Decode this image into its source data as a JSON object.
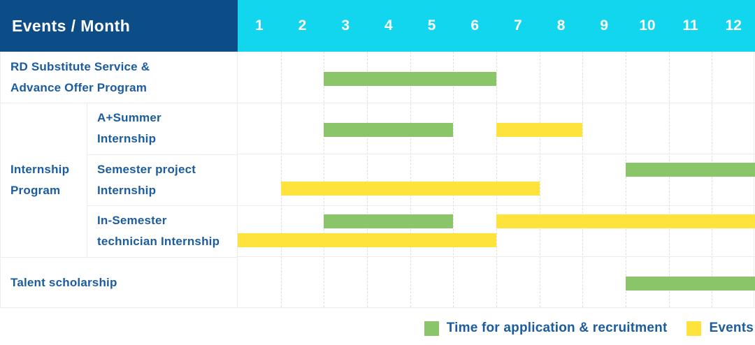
{
  "title": "Events / Month",
  "months": [
    "1",
    "2",
    "3",
    "4",
    "5",
    "6",
    "7",
    "8",
    "9",
    "10",
    "11",
    "12"
  ],
  "group_label": "Internship\nProgram",
  "colors": {
    "header_bg": "#0d4d87",
    "months_bg": "#12d6ee",
    "green": "#8bc56a",
    "yellow": "#ffe33d",
    "label_text": "#1b5c9e",
    "header_text": "#ffffff",
    "grid_solid": "#ececec",
    "grid_dashed": "#dfdfdf"
  },
  "legend": [
    {
      "color": "green",
      "label": "Time for application & recruitment"
    },
    {
      "color": "yellow",
      "label": "Events"
    }
  ],
  "chart_data": {
    "type": "bar",
    "subtype": "gantt",
    "title": "Events / Month",
    "x_categories": [
      1,
      2,
      3,
      4,
      5,
      6,
      7,
      8,
      9,
      10,
      11,
      12
    ],
    "x_unit": "month",
    "grid": true,
    "legend_position": "bottom-right",
    "series_colors": {
      "Time for application & recruitment": "#8bc56a",
      "Events": "#ffe33d"
    },
    "rows": [
      {
        "label": "RD Substitute Service &\nAdvance Offer Program",
        "group": "",
        "bars": [
          {
            "series": "Time for application & recruitment",
            "color": "green",
            "start_month": 3,
            "end_month": 6,
            "track": "center"
          }
        ]
      },
      {
        "label": "A+Summer\nInternship",
        "group": "Internship Program",
        "bars": [
          {
            "series": "Time for application & recruitment",
            "color": "green",
            "start_month": 3,
            "end_month": 5,
            "track": "center"
          },
          {
            "series": "Events",
            "color": "yellow",
            "start_month": 7,
            "end_month": 8,
            "track": "center"
          }
        ]
      },
      {
        "label": "Semester project\nInternship",
        "group": "Internship Program",
        "bars": [
          {
            "series": "Time for application & recruitment",
            "color": "green",
            "start_month": 10,
            "end_month": 12,
            "track": "upper"
          },
          {
            "series": "Events",
            "color": "yellow",
            "start_month": 2,
            "end_month": 7,
            "track": "lower"
          }
        ]
      },
      {
        "label": "In-Semester\ntechnician Internship",
        "group": "Internship Program",
        "bars": [
          {
            "series": "Time for application & recruitment",
            "color": "green",
            "start_month": 3,
            "end_month": 5,
            "track": "upper"
          },
          {
            "series": "Events",
            "color": "yellow",
            "start_month": 7,
            "end_month": 12,
            "track": "upper"
          },
          {
            "series": "Events",
            "color": "yellow",
            "start_month": 1,
            "end_month": 6,
            "track": "lower"
          }
        ]
      },
      {
        "label": "Talent scholarship",
        "group": "",
        "bars": [
          {
            "series": "Time for application & recruitment",
            "color": "green",
            "start_month": 10,
            "end_month": 12,
            "track": "center"
          }
        ]
      }
    ]
  }
}
